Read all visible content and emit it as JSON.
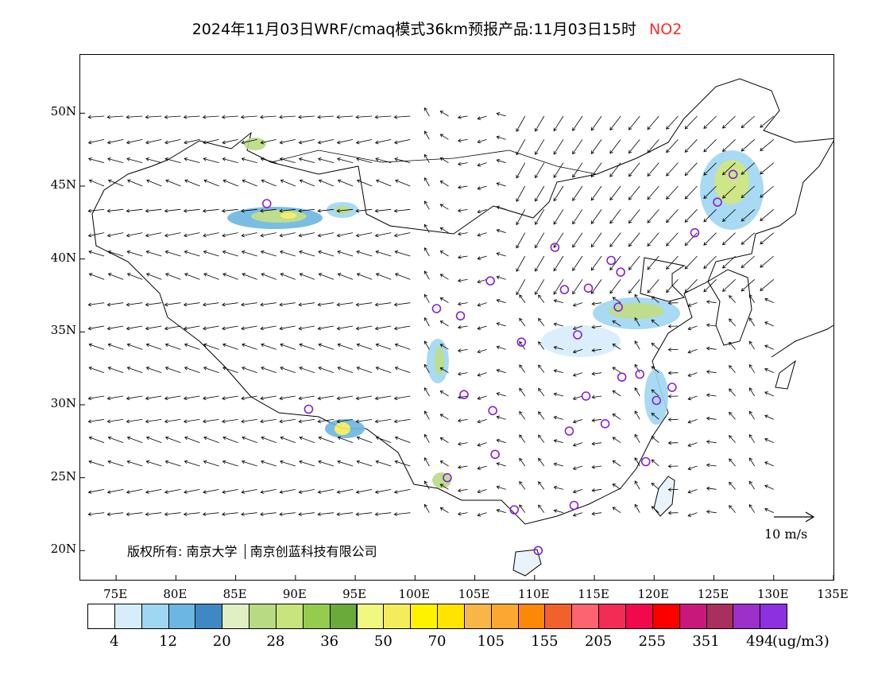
{
  "title": {
    "prefix": "2024年11月03日WRF/cmaq模式36km预报产品:11月03日15时",
    "pollutant": "NO2",
    "pollutant_color": "#ff2a2a"
  },
  "map": {
    "lat_labels": [
      "50N",
      "45N",
      "40N",
      "35N",
      "30N",
      "25N",
      "20N"
    ],
    "lat_values": [
      50,
      45,
      40,
      35,
      30,
      25,
      20
    ],
    "lon_labels": [
      "75E",
      "80E",
      "85E",
      "90E",
      "95E",
      "100E",
      "105E",
      "110E",
      "115E",
      "120E",
      "125E",
      "130E",
      "135E"
    ],
    "lon_values": [
      75,
      80,
      85,
      90,
      95,
      100,
      105,
      110,
      115,
      120,
      125,
      130,
      135
    ],
    "lon_range": [
      72,
      135
    ],
    "lat_range": [
      18,
      54
    ],
    "copyright_label": "版权所有:",
    "copyright_org1": "南京大学",
    "copyright_org2": "南京创蓝科技有限公司",
    "wind_scale_label": "10 m/s",
    "stations": [
      {
        "lon": 87.6,
        "lat": 43.8
      },
      {
        "lon": 91.1,
        "lat": 29.7
      },
      {
        "lon": 101.8,
        "lat": 36.6
      },
      {
        "lon": 103.8,
        "lat": 36.1
      },
      {
        "lon": 106.3,
        "lat": 38.5
      },
      {
        "lon": 111.7,
        "lat": 40.8
      },
      {
        "lon": 112.5,
        "lat": 37.9
      },
      {
        "lon": 114.5,
        "lat": 38.0
      },
      {
        "lon": 116.4,
        "lat": 39.9
      },
      {
        "lon": 117.2,
        "lat": 39.1
      },
      {
        "lon": 117.0,
        "lat": 36.7
      },
      {
        "lon": 113.6,
        "lat": 34.8
      },
      {
        "lon": 108.9,
        "lat": 34.3
      },
      {
        "lon": 104.1,
        "lat": 30.7
      },
      {
        "lon": 106.5,
        "lat": 29.6
      },
      {
        "lon": 106.7,
        "lat": 26.6
      },
      {
        "lon": 102.7,
        "lat": 25.0
      },
      {
        "lon": 108.3,
        "lat": 22.8
      },
      {
        "lon": 113.3,
        "lat": 23.1
      },
      {
        "lon": 110.3,
        "lat": 20.0
      },
      {
        "lon": 112.9,
        "lat": 28.2
      },
      {
        "lon": 115.9,
        "lat": 28.7
      },
      {
        "lon": 114.3,
        "lat": 30.6
      },
      {
        "lon": 117.3,
        "lat": 31.9
      },
      {
        "lon": 118.8,
        "lat": 32.1
      },
      {
        "lon": 120.2,
        "lat": 30.3
      },
      {
        "lon": 121.5,
        "lat": 31.2
      },
      {
        "lon": 119.3,
        "lat": 26.1
      },
      {
        "lon": 123.4,
        "lat": 41.8
      },
      {
        "lon": 125.3,
        "lat": 43.9
      },
      {
        "lon": 126.6,
        "lat": 45.8
      }
    ],
    "station_color": "#8b1fd6"
  },
  "colorbar": {
    "colors": [
      "#ffffff",
      "#d6eefb",
      "#9fd6f2",
      "#6cb6e2",
      "#3f88c4",
      "#e0efc4",
      "#b8da82",
      "#c8e47c",
      "#96cc4e",
      "#6aaa3a",
      "#f0f880",
      "#f4ec5a",
      "#fff200",
      "#ffe400",
      "#f8b648",
      "#fca830",
      "#fc8808",
      "#f2602c",
      "#fc6470",
      "#f22c54",
      "#f2084c",
      "#fc0000",
      "#c8187c",
      "#a8305c",
      "#9c30c8",
      "#8c30e0"
    ],
    "labels": [
      "4",
      "12",
      "20",
      "28",
      "36",
      "50",
      "70",
      "105",
      "155",
      "205",
      "255",
      "351",
      "494"
    ],
    "unit": "(ug/m3)"
  }
}
